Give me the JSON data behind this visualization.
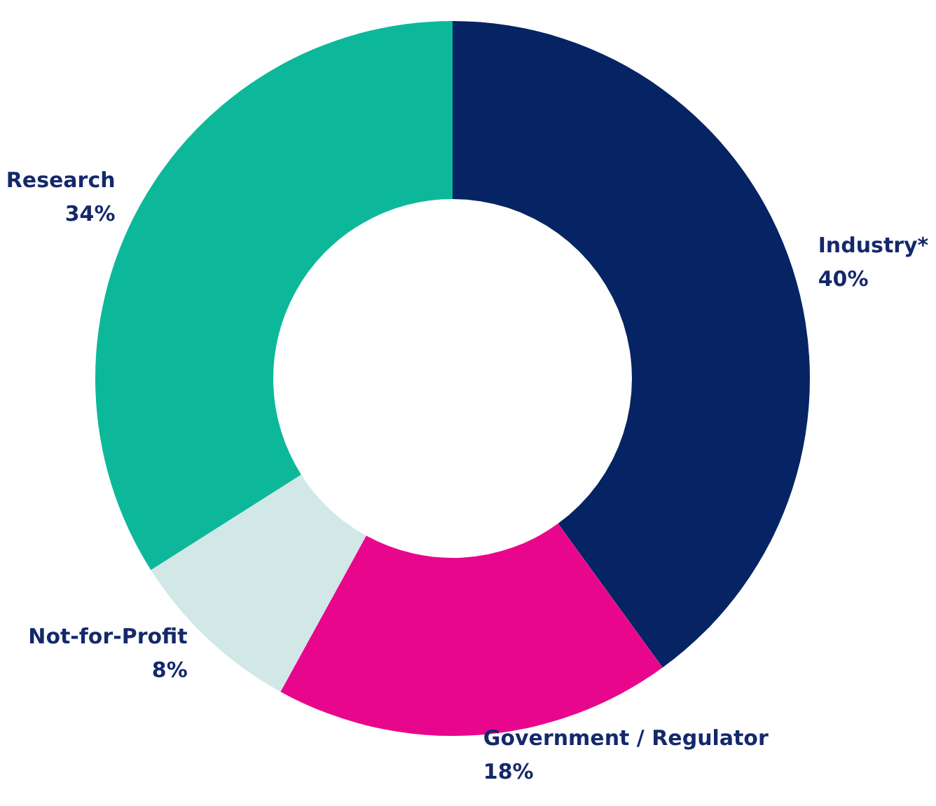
{
  "chart_data": {
    "type": "donut",
    "categories": [
      "Industry*",
      "Government / Regulator",
      "Not-for-Profit",
      "Research"
    ],
    "values": [
      40,
      18,
      8,
      34
    ],
    "value_labels": [
      "40%",
      "18%",
      "8%",
      "34%"
    ],
    "colors": [
      "#062463",
      "#e8078c",
      "#d1e8e6",
      "#0db89a"
    ]
  }
}
